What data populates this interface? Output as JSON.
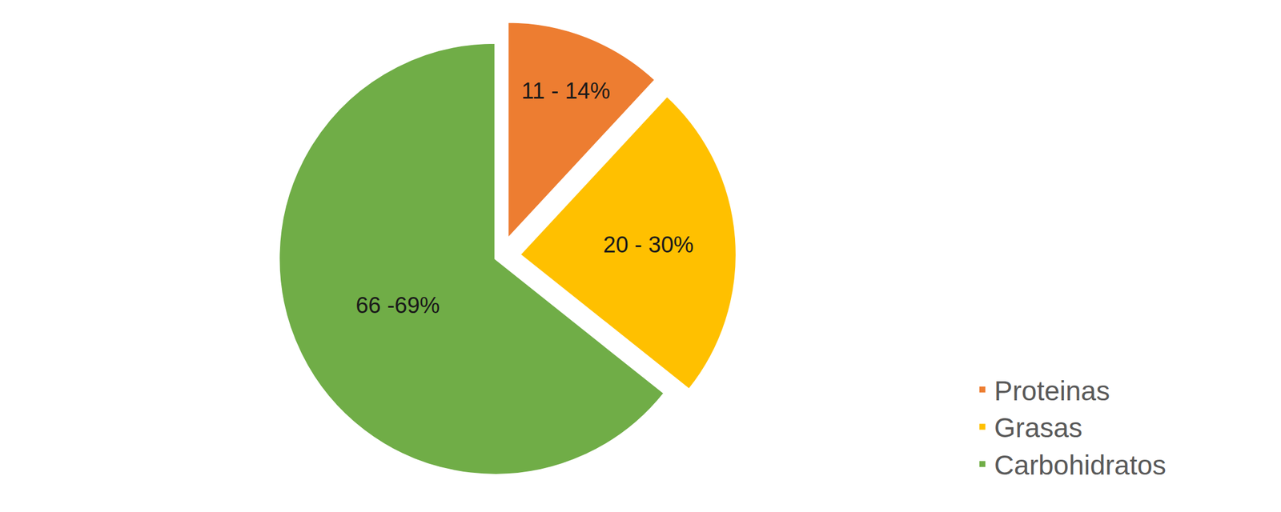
{
  "chart_data": {
    "type": "pie",
    "categories": [
      "Proteinas",
      "Grasas",
      "Carbohidratos"
    ],
    "values": [
      12.5,
      25,
      67.5
    ],
    "value_labels": [
      "11 - 14%",
      "20 - 30%",
      "66 -69%"
    ],
    "colors": [
      "#ED7D31",
      "#FFC000",
      "#70AD47"
    ],
    "data_labels": true,
    "legend": "right"
  }
}
